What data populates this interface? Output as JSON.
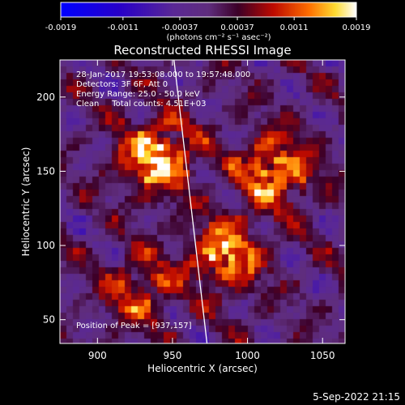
{
  "chart_data": {
    "type": "heatmap",
    "title": "Reconstructed RHESSI Image",
    "xlabel": "Heliocentric X (arcsec)",
    "ylabel": "Heliocentric Y (arcsec)",
    "xlim": [
      875,
      1065
    ],
    "ylim": [
      34,
      225
    ],
    "xticks": [
      {
        "value": 900,
        "label": "900"
      },
      {
        "value": 950,
        "label": "950"
      },
      {
        "value": 1000,
        "label": "1000"
      },
      {
        "value": 1050,
        "label": "1050"
      }
    ],
    "yticks": [
      {
        "value": 50,
        "label": "50"
      },
      {
        "value": 100,
        "label": "100"
      },
      {
        "value": 150,
        "label": "150"
      },
      {
        "value": 200,
        "label": "200"
      }
    ],
    "colorbar": {
      "min": -0.0019,
      "max": 0.0019,
      "tick_labels": [
        "-0.0019",
        "-0.0011",
        "-0.00037",
        "0.00037",
        "0.0011",
        "0.0019"
      ],
      "units_label": "(photons cm⁻² s⁻¹ asec⁻²)",
      "colormap": "blue-purple-red-yellow-white"
    },
    "annotations": {
      "time_range": "28-Jan-2017 19:53:08.000 to 19:57:48.000",
      "detectors": "Detectors: 3F 6F, Att 0",
      "energy_range": "Energy Range: 25.0 - 50.0 keV",
      "clean_counts": "Clean     Total counts: 4.51E+03",
      "peak_position": "Position of Peak = [937,157]"
    },
    "sources": [
      {
        "x": 940,
        "y": 160,
        "level": 0.0019
      },
      {
        "x": 1018,
        "y": 150,
        "level": 0.0016
      },
      {
        "x": 985,
        "y": 94,
        "level": 0.0016
      },
      {
        "x": 928,
        "y": 70,
        "level": 0.0011
      }
    ],
    "limb_line": {
      "x_start": 951,
      "y_start": 225,
      "x_end": 973,
      "y_end": 34
    }
  },
  "footer": {
    "timestamp": "5-Sep-2022 21:15"
  }
}
